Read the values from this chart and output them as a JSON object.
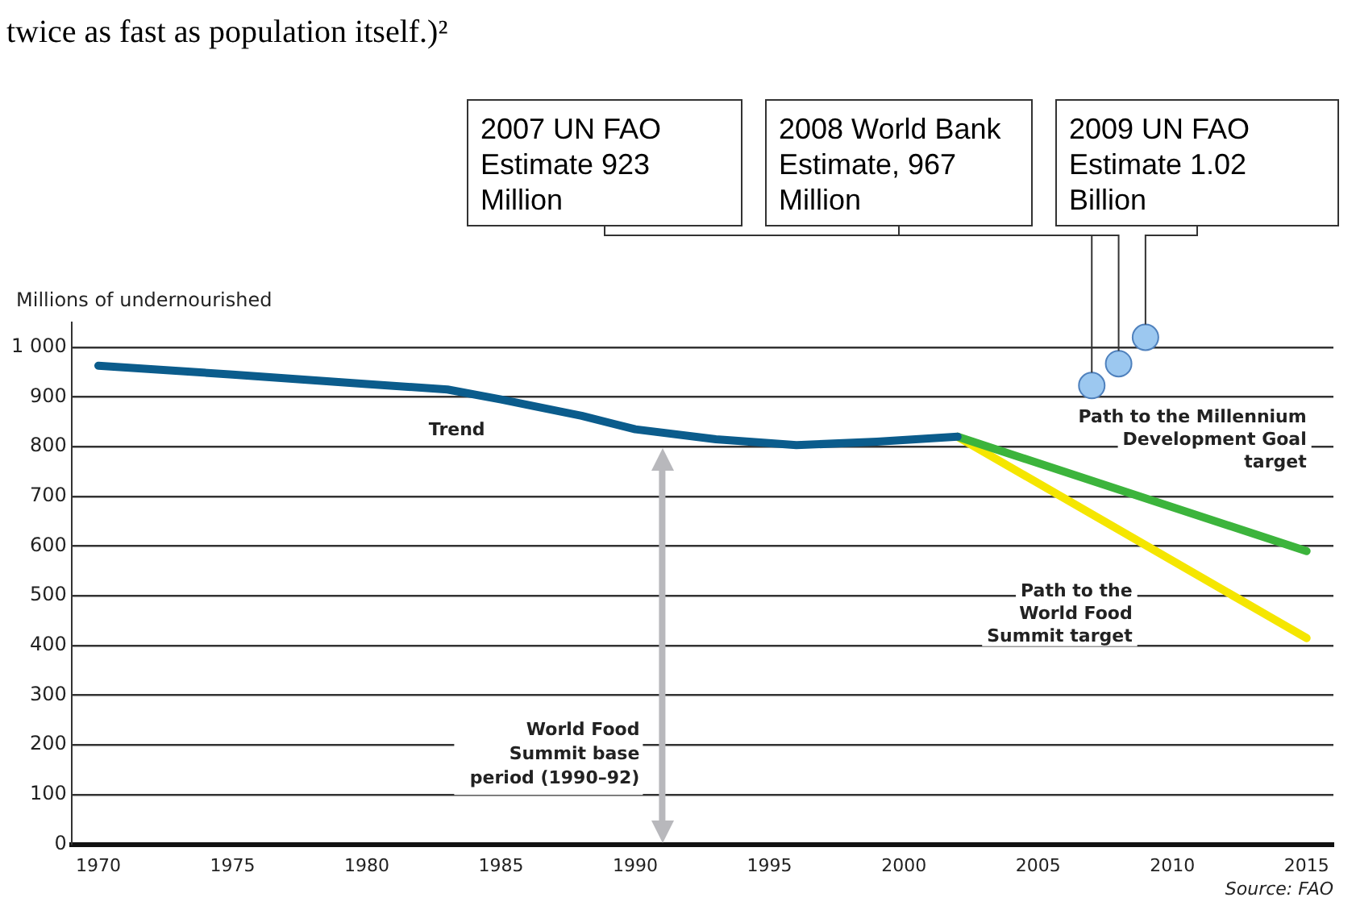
{
  "chart_data": {
    "type": "line",
    "ylabel": "Millions of undernourished",
    "series": [
      {
        "name": "Trend",
        "color": "#0b5c8c",
        "x": [
          1970,
          1975,
          1980,
          1983,
          1985,
          1988,
          1990,
          1993,
          1996,
          1999,
          2002
        ],
        "values": [
          963,
          945,
          926,
          915,
          895,
          862,
          835,
          815,
          803,
          810,
          820
        ]
      },
      {
        "name": "Path to the Millennium Development Goal target",
        "color": "#3cb43c",
        "x": [
          2002,
          2015
        ],
        "values": [
          820,
          590
        ]
      },
      {
        "name": "Path to the World Food Summit target",
        "color": "#f5e600",
        "x": [
          2002,
          2015
        ],
        "values": [
          820,
          415
        ]
      },
      {
        "type": "scatter",
        "marker": "circle",
        "color": "#9cc8f0",
        "x": [
          2007,
          2008,
          2009
        ],
        "values": [
          923,
          967,
          1020
        ]
      }
    ],
    "xlim": [
      1969,
      2016
    ],
    "xticks": [
      1970,
      1975,
      1980,
      1985,
      1990,
      1995,
      2000,
      2005,
      2010,
      2015
    ],
    "ylim": [
      0,
      1050
    ],
    "yticks": [
      0,
      100,
      200,
      300,
      400,
      500,
      600,
      700,
      800,
      900,
      {
        "value": 1000,
        "label": "1 000"
      }
    ],
    "grid": "y",
    "legend": false,
    "marker": "none",
    "ref_lines": [
      {
        "axis": "x",
        "value": 1991,
        "label": "World Food Summit base period (1990–92)",
        "color": "#b8b8bc"
      }
    ],
    "annotations": [
      "twice as fast as population itself.)²",
      {
        "text": "2007 UN FAO Estimate 923 Million",
        "x": 2007,
        "y": 923
      },
      {
        "text": "2008 World Bank Estimate, 967 Million",
        "x": 2008,
        "y": 967
      },
      {
        "text": "2009 UN FAO Estimate 1.02 Billion",
        "x": 2009,
        "y": 1020
      },
      "Source: FAO"
    ]
  }
}
